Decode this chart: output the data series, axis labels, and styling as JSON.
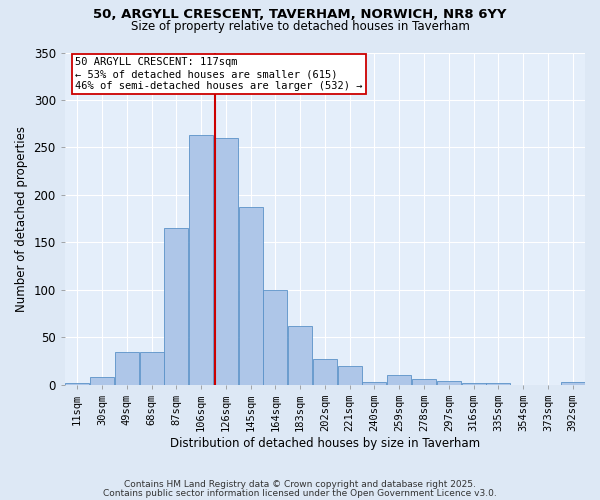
{
  "title": "50, ARGYLL CRESCENT, TAVERHAM, NORWICH, NR8 6YY",
  "subtitle": "Size of property relative to detached houses in Taverham",
  "xlabel": "Distribution of detached houses by size in Taverham",
  "ylabel": "Number of detached properties",
  "categories": [
    "11sqm",
    "30sqm",
    "49sqm",
    "68sqm",
    "87sqm",
    "106sqm",
    "126sqm",
    "145sqm",
    "164sqm",
    "183sqm",
    "202sqm",
    "221sqm",
    "240sqm",
    "259sqm",
    "278sqm",
    "297sqm",
    "316sqm",
    "335sqm",
    "354sqm",
    "373sqm",
    "392sqm"
  ],
  "values": [
    2,
    8,
    35,
    35,
    165,
    263,
    260,
    187,
    100,
    62,
    27,
    20,
    3,
    10,
    6,
    4,
    2,
    2,
    0,
    0,
    3
  ],
  "bar_color": "#aec6e8",
  "bar_edge_color": "#5b92c8",
  "vline_color": "#cc0000",
  "annotation_text": "50 ARGYLL CRESCENT: 117sqm\n← 53% of detached houses are smaller (615)\n46% of semi-detached houses are larger (532) →",
  "annotation_box_color": "white",
  "annotation_box_edge": "#cc0000",
  "bg_color": "#dde8f5",
  "plot_bg_color": "#e4eefa",
  "footer_line1": "Contains HM Land Registry data © Crown copyright and database right 2025.",
  "footer_line2": "Contains public sector information licensed under the Open Government Licence v3.0.",
  "ylim": [
    0,
    350
  ],
  "yticks": [
    0,
    50,
    100,
    150,
    200,
    250,
    300,
    350
  ]
}
